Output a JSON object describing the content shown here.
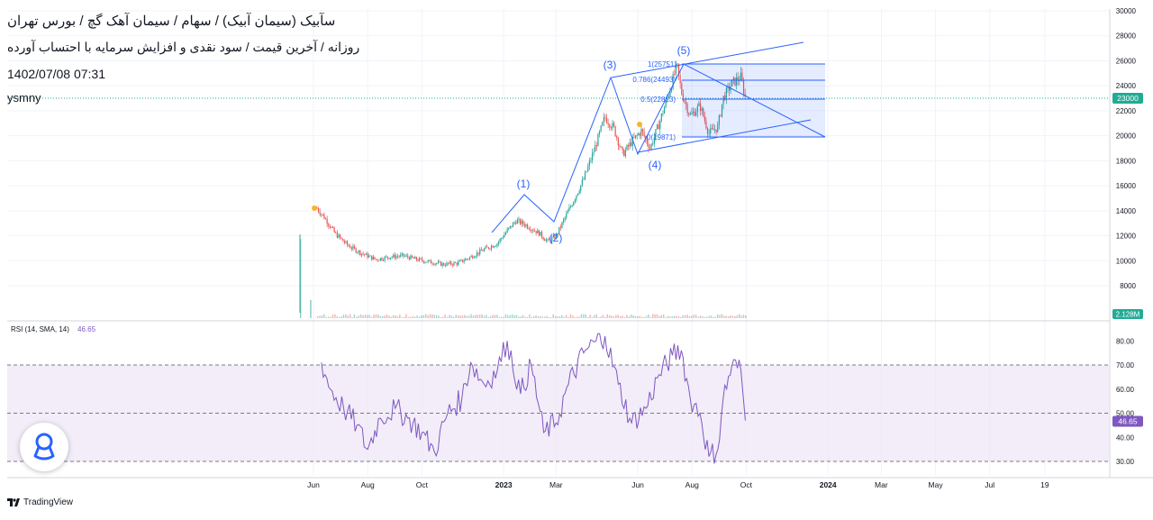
{
  "header": {
    "title": "سآبیک (سیمان آبیک) / سهام / سیمان آهک گچ / بورس تهران",
    "subtitle": "روزانه / آخرین قیمت / سود نقدی و افزایش سرمایه با احتساب آورده",
    "datetime": "1402/07/08 07:31",
    "symbol": "ysmny"
  },
  "footer": {
    "brand": "TradingView",
    "brand_icon": "tradingview-logo-icon"
  },
  "logo_icon": "map-pin-outline-icon",
  "colors": {
    "up": "#26a69a",
    "down": "#ef5350",
    "rsi": "#7e57c2",
    "drawing": "#2962ff",
    "rsi_band": "#ede7f6",
    "last_price": "#22ab94"
  },
  "price_axis": {
    "ticks": [
      "30000",
      "28000",
      "26000",
      "24000",
      "22000",
      "20000",
      "18000",
      "16000",
      "14000",
      "12000",
      "10000",
      "8000"
    ],
    "last_price_label": "23000",
    "volume_label": "2.128M"
  },
  "rsi_panel": {
    "legend": "RSI (14, SMA, 14)",
    "legend_value": "46.65",
    "ticks": [
      "80.00",
      "70.00",
      "60.00",
      "50.00",
      "40.00",
      "30.00"
    ],
    "last_label": "46.65"
  },
  "time_axis": [
    "Jun",
    "Aug",
    "Oct",
    "2023",
    "Mar",
    "Jun",
    "Aug",
    "Oct",
    "2024",
    "Mar",
    "May",
    "Jul",
    "19"
  ],
  "wave_labels": [
    "(1)",
    "(2)",
    "(3)",
    "(4)",
    "(5)"
  ],
  "fib_labels": [
    "1(25751)",
    "0.786(24493)",
    "0.5(22813)",
    "0(19871)"
  ],
  "chart_data": [
    {
      "type": "candlestick",
      "title": "ysmny",
      "y_range": [
        8000,
        30000
      ],
      "last_price": 23000,
      "close_path": [
        {
          "x": "2022-06-05",
          "y": 14200
        },
        {
          "x": "2022-06-15",
          "y": 13300
        },
        {
          "x": "2022-06-25",
          "y": 12200
        },
        {
          "x": "2022-07-10",
          "y": 11200
        },
        {
          "x": "2022-07-25",
          "y": 10600
        },
        {
          "x": "2022-08-10",
          "y": 10100
        },
        {
          "x": "2022-08-25",
          "y": 10300
        },
        {
          "x": "2022-09-10",
          "y": 10400
        },
        {
          "x": "2022-09-25",
          "y": 10100
        },
        {
          "x": "2022-10-10",
          "y": 9900
        },
        {
          "x": "2022-10-25",
          "y": 9700
        },
        {
          "x": "2022-11-10",
          "y": 9800
        },
        {
          "x": "2022-11-25",
          "y": 10300
        },
        {
          "x": "2022-12-10",
          "y": 10900
        },
        {
          "x": "2022-12-25",
          "y": 11400
        },
        {
          "x": "2023-01-05",
          "y": 12400
        },
        {
          "x": "2023-01-15",
          "y": 13200
        },
        {
          "x": "2023-01-25",
          "y": 12900
        },
        {
          "x": "2023-02-10",
          "y": 12200
        },
        {
          "x": "2023-02-20",
          "y": 11500
        },
        {
          "x": "2023-03-01",
          "y": 12000
        },
        {
          "x": "2023-03-15",
          "y": 14000
        },
        {
          "x": "2023-04-01",
          "y": 16500
        },
        {
          "x": "2023-04-15",
          "y": 19300
        },
        {
          "x": "2023-04-25",
          "y": 21500
        },
        {
          "x": "2023-05-05",
          "y": 20600
        },
        {
          "x": "2023-05-15",
          "y": 18500
        },
        {
          "x": "2023-05-25",
          "y": 19500
        },
        {
          "x": "2023-06-05",
          "y": 20400
        },
        {
          "x": "2023-06-15",
          "y": 19000
        },
        {
          "x": "2023-06-25",
          "y": 21000
        },
        {
          "x": "2023-07-05",
          "y": 23200
        },
        {
          "x": "2023-07-15",
          "y": 25600
        },
        {
          "x": "2023-07-20",
          "y": 23500
        },
        {
          "x": "2023-07-30",
          "y": 21600
        },
        {
          "x": "2023-08-10",
          "y": 22400
        },
        {
          "x": "2023-08-20",
          "y": 20200
        },
        {
          "x": "2023-08-30",
          "y": 20700
        },
        {
          "x": "2023-09-05",
          "y": 23000
        },
        {
          "x": "2023-09-15",
          "y": 24200
        },
        {
          "x": "2023-09-25",
          "y": 24700
        },
        {
          "x": "2023-09-30",
          "y": 23000
        }
      ]
    },
    {
      "type": "line",
      "title": "RSI (14, SMA, 14)",
      "y_range": [
        28,
        84
      ],
      "band": [
        30,
        70
      ],
      "midline": 50,
      "last_value": 46.65,
      "series": [
        {
          "values": [
            {
              "x": "2022-06-10",
              "y": 71
            },
            {
              "x": "2022-06-20",
              "y": 60
            },
            {
              "x": "2022-07-05",
              "y": 52
            },
            {
              "x": "2022-07-20",
              "y": 45
            },
            {
              "x": "2022-08-01",
              "y": 35
            },
            {
              "x": "2022-08-15",
              "y": 48
            },
            {
              "x": "2022-09-01",
              "y": 52
            },
            {
              "x": "2022-09-15",
              "y": 48
            },
            {
              "x": "2022-10-01",
              "y": 42
            },
            {
              "x": "2022-10-15",
              "y": 34
            },
            {
              "x": "2022-10-30",
              "y": 50
            },
            {
              "x": "2022-11-15",
              "y": 56
            },
            {
              "x": "2022-11-25",
              "y": 71
            },
            {
              "x": "2022-12-10",
              "y": 62
            },
            {
              "x": "2022-12-25",
              "y": 68
            },
            {
              "x": "2023-01-05",
              "y": 80
            },
            {
              "x": "2023-01-20",
              "y": 58
            },
            {
              "x": "2023-02-01",
              "y": 70
            },
            {
              "x": "2023-02-15",
              "y": 42
            },
            {
              "x": "2023-03-01",
              "y": 46
            },
            {
              "x": "2023-03-15",
              "y": 62
            },
            {
              "x": "2023-04-01",
              "y": 75
            },
            {
              "x": "2023-04-15",
              "y": 80
            },
            {
              "x": "2023-04-25",
              "y": 82
            },
            {
              "x": "2023-05-10",
              "y": 62
            },
            {
              "x": "2023-05-25",
              "y": 46
            },
            {
              "x": "2023-06-10",
              "y": 52
            },
            {
              "x": "2023-06-25",
              "y": 66
            },
            {
              "x": "2023-07-10",
              "y": 74
            },
            {
              "x": "2023-07-20",
              "y": 76
            },
            {
              "x": "2023-07-30",
              "y": 56
            },
            {
              "x": "2023-08-10",
              "y": 50
            },
            {
              "x": "2023-08-20",
              "y": 32
            },
            {
              "x": "2023-08-30",
              "y": 35
            },
            {
              "x": "2023-09-05",
              "y": 56
            },
            {
              "x": "2023-09-15",
              "y": 70
            },
            {
              "x": "2023-09-25",
              "y": 68
            },
            {
              "x": "2023-09-30",
              "y": 47
            }
          ]
        }
      ]
    }
  ]
}
